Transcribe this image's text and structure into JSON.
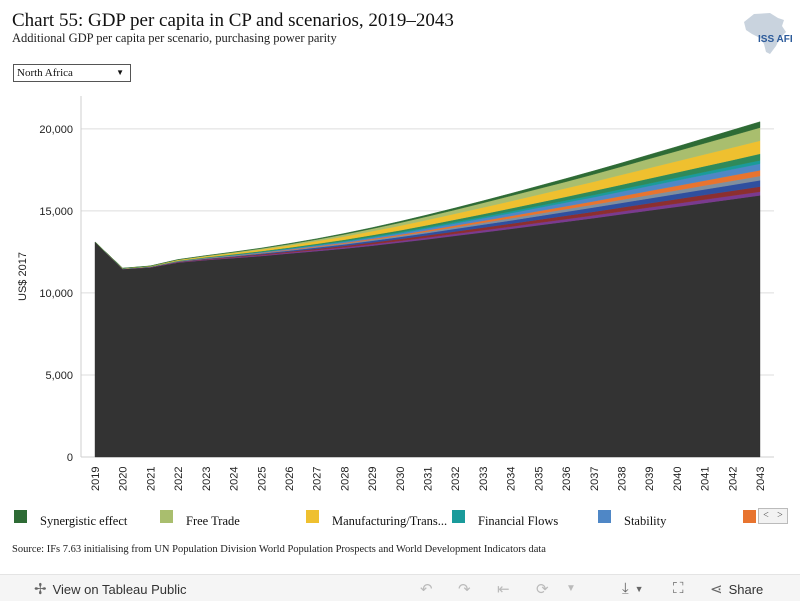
{
  "title": "Chart 55: GDP per capita in CP and scenarios, 2019–2043",
  "subtitle": "Additional GDP per capita per scenario, purchasing power parity",
  "logo_text": "ISS AFRICA",
  "filter": {
    "selected": "North Africa"
  },
  "legend": [
    {
      "label": "Synergistic effect",
      "color": "#2e6b35"
    },
    {
      "label": "Free Trade",
      "color": "#a9be6e"
    },
    {
      "label": "Manufacturing/Trans...",
      "color": "#efc02f"
    },
    {
      "label": "Financial Flows",
      "color": "#1a9b9b"
    },
    {
      "label": "Stability",
      "color": "#4f87c6"
    },
    {
      "label": "",
      "color": "#e8742f"
    }
  ],
  "source": "Source: IFs 7.63 initialising from UN Population Division World Population Prospects and World Development Indicators data",
  "footer": {
    "view_label": "View on Tableau Public",
    "share_label": "Share"
  },
  "chart_data": {
    "type": "area",
    "stacked": true,
    "ylabel": "US$ 2017",
    "ylim": [
      0,
      22000
    ],
    "yticks": [
      0,
      5000,
      10000,
      15000,
      20000
    ],
    "ytick_labels": [
      "0",
      "5,000",
      "10,000",
      "15,000",
      "20,000"
    ],
    "x": [
      "2019",
      "2020",
      "2021",
      "2022",
      "2023",
      "2024",
      "2025",
      "2026",
      "2027",
      "2028",
      "2029",
      "2030",
      "2031",
      "2032",
      "2033",
      "2034",
      "2035",
      "2036",
      "2037",
      "2038",
      "2039",
      "2040",
      "2041",
      "2042",
      "2043"
    ],
    "series": [
      {
        "name": "",
        "color": "#333333",
        "values": [
          13100,
          11450,
          11550,
          11850,
          12000,
          12120,
          12250,
          12400,
          12550,
          12700,
          12880,
          13070,
          13270,
          13480,
          13690,
          13900,
          14120,
          14340,
          14560,
          14790,
          15020,
          15250,
          15480,
          15710,
          15940
        ]
      },
      {
        "name": "",
        "color": "#7a3a8f",
        "values": [
          0,
          5,
          10,
          20,
          30,
          40,
          50,
          60,
          70,
          80,
          90,
          100,
          110,
          120,
          130,
          140,
          150,
          160,
          170,
          180,
          190,
          200,
          210,
          220,
          230
        ]
      },
      {
        "name": "",
        "color": "#8c2f2f",
        "values": [
          0,
          5,
          10,
          20,
          30,
          40,
          50,
          60,
          70,
          85,
          100,
          115,
          130,
          145,
          160,
          175,
          190,
          205,
          220,
          235,
          250,
          265,
          280,
          295,
          310
        ]
      },
      {
        "name": "",
        "color": "#2f4f9f",
        "values": [
          0,
          5,
          10,
          20,
          30,
          40,
          50,
          60,
          75,
          90,
          105,
          120,
          140,
          160,
          180,
          200,
          220,
          240,
          260,
          280,
          300,
          320,
          340,
          360,
          380
        ]
      },
      {
        "name": "",
        "color": "#7f8f9f",
        "values": [
          0,
          5,
          5,
          10,
          15,
          20,
          25,
          30,
          40,
          50,
          60,
          70,
          85,
          100,
          115,
          130,
          145,
          160,
          175,
          190,
          205,
          220,
          235,
          250,
          265
        ]
      },
      {
        "name": "",
        "color": "#e8742f",
        "values": [
          0,
          5,
          5,
          10,
          15,
          20,
          25,
          30,
          40,
          50,
          60,
          70,
          85,
          100,
          120,
          140,
          160,
          180,
          200,
          225,
          250,
          275,
          300,
          325,
          350
        ]
      },
      {
        "name": "Stability",
        "color": "#4f87c6",
        "values": [
          0,
          5,
          5,
          10,
          15,
          20,
          30,
          40,
          50,
          60,
          75,
          90,
          110,
          130,
          150,
          175,
          200,
          225,
          250,
          275,
          300,
          325,
          350,
          375,
          400
        ]
      },
      {
        "name": "Financial Flows",
        "color": "#1a9b9b",
        "values": [
          0,
          5,
          5,
          10,
          15,
          20,
          25,
          30,
          40,
          50,
          60,
          70,
          80,
          90,
          100,
          110,
          120,
          130,
          140,
          150,
          160,
          170,
          180,
          190,
          200
        ]
      },
      {
        "name": "",
        "color": "#2f8a5a",
        "values": [
          0,
          5,
          10,
          15,
          20,
          30,
          40,
          50,
          60,
          75,
          90,
          105,
          120,
          140,
          160,
          180,
          200,
          220,
          245,
          270,
          295,
          320,
          345,
          370,
          400
        ]
      },
      {
        "name": "Manufacturing/Trans...",
        "color": "#efc02f",
        "values": [
          0,
          10,
          20,
          40,
          60,
          80,
          100,
          130,
          160,
          200,
          240,
          280,
          320,
          360,
          400,
          440,
          480,
          520,
          560,
          600,
          640,
          680,
          720,
          760,
          800
        ]
      },
      {
        "name": "Free Trade",
        "color": "#a9be6e",
        "values": [
          0,
          5,
          10,
          20,
          30,
          45,
          60,
          80,
          100,
          125,
          150,
          180,
          210,
          240,
          280,
          320,
          360,
          400,
          450,
          500,
          560,
          620,
          680,
          740,
          800
        ]
      },
      {
        "name": "Synergistic effect",
        "color": "#2e6b35",
        "values": [
          0,
          5,
          10,
          15,
          20,
          25,
          30,
          40,
          50,
          60,
          70,
          85,
          100,
          115,
          130,
          150,
          170,
          190,
          210,
          230,
          250,
          270,
          300,
          330,
          360
        ]
      }
    ]
  }
}
